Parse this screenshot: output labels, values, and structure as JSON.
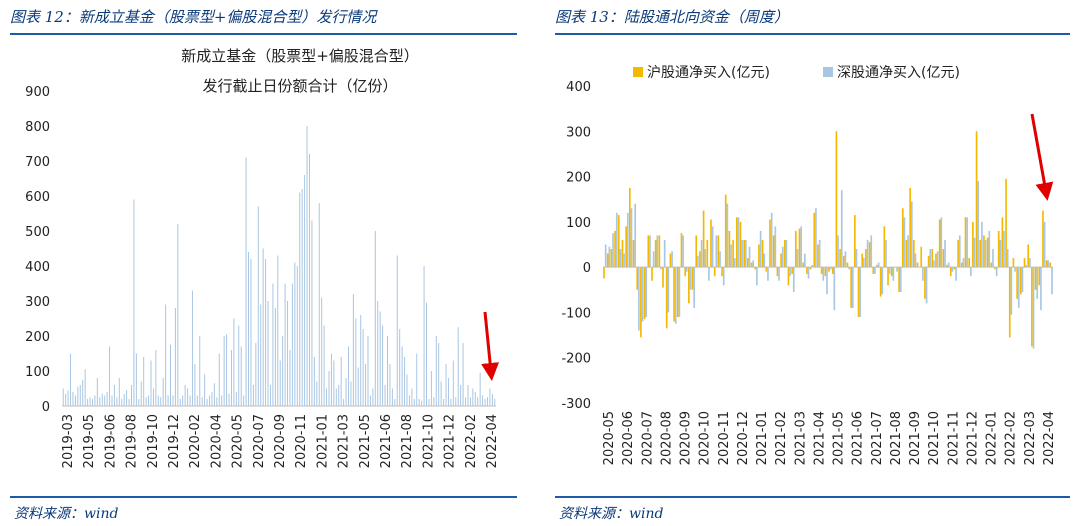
{
  "panels": [
    {
      "fig_title": "图表 12：新成立基金（股票型+偏股混合型）发行情况",
      "source": "资料来源：wind",
      "chart_data": {
        "type": "bar",
        "title_line1": "新成立基金（股票型+偏股混合型）",
        "title_line2": "发行截止日份额合计（亿份）",
        "ylim": [
          0,
          900
        ],
        "yticks": [
          0,
          100,
          200,
          300,
          400,
          500,
          600,
          700,
          800,
          900
        ],
        "xtick_labels": [
          "2019-03",
          "2019-05",
          "2019-06",
          "2019-08",
          "2019-10",
          "2019-12",
          "2020-02",
          "2020-04",
          "2020-05",
          "2020-07",
          "2020-09",
          "2020-11",
          "2021-01",
          "2021-03",
          "2021-05",
          "2021-06",
          "2021-08",
          "2021-10",
          "2021-12",
          "2022-02",
          "2022-04"
        ],
        "bar_color": "#a9c6e3",
        "values": [
          50,
          35,
          45,
          150,
          40,
          30,
          55,
          60,
          75,
          105,
          20,
          25,
          20,
          30,
          80,
          25,
          35,
          30,
          40,
          170,
          30,
          60,
          25,
          80,
          20,
          35,
          45,
          20,
          60,
          590,
          150,
          20,
          70,
          140,
          25,
          30,
          130,
          50,
          160,
          30,
          25,
          80,
          290,
          30,
          175,
          30,
          280,
          520,
          20,
          30,
          60,
          50,
          30,
          330,
          120,
          30,
          200,
          25,
          90,
          20,
          30,
          40,
          65,
          25,
          150,
          30,
          200,
          205,
          35,
          160,
          250,
          40,
          230,
          170,
          30,
          710,
          440,
          420,
          60,
          180,
          570,
          290,
          450,
          420,
          300,
          60,
          350,
          280,
          430,
          130,
          200,
          350,
          300,
          160,
          350,
          410,
          400,
          610,
          620,
          660,
          800,
          720,
          530,
          140,
          70,
          580,
          310,
          230,
          50,
          100,
          150,
          130,
          50,
          60,
          140,
          20,
          80,
          170,
          70,
          320,
          250,
          110,
          260,
          220,
          120,
          200,
          30,
          50,
          500,
          300,
          270,
          230,
          60,
          200,
          120,
          50,
          20,
          430,
          220,
          170,
          140,
          90,
          30,
          50,
          20,
          150,
          20,
          15,
          400,
          295,
          20,
          100,
          25,
          200,
          180,
          70,
          20,
          120,
          80,
          20,
          130,
          25,
          225,
          60,
          180,
          25,
          60,
          25,
          50,
          40,
          25,
          95,
          30,
          20,
          25,
          50,
          35,
          20
        ]
      }
    },
    {
      "fig_title": "图表 13：陆股通北向资金（周度）",
      "source": "资料来源：wind",
      "chart_data": {
        "type": "bar",
        "ylim": [
          -300,
          400
        ],
        "yticks": [
          -300,
          -200,
          -100,
          0,
          100,
          200,
          300,
          400
        ],
        "xtick_labels": [
          "2020-05",
          "2020-06",
          "2020-07",
          "2020-08",
          "2020-09",
          "2020-10",
          "2020-11",
          "2020-12",
          "2021-01",
          "2021-02",
          "2021-03",
          "2021-04",
          "2021-05",
          "2021-06",
          "2021-07",
          "2021-08",
          "2021-09",
          "2021-10",
          "2021-11",
          "2021-12",
          "2022-01",
          "2022-02",
          "2022-03",
          "2022-04"
        ],
        "legend_position": "top",
        "series": [
          {
            "name": "沪股通净买入(亿元)",
            "color": "#f5b800",
            "values": [
              -25,
              30,
              40,
              80,
              115,
              60,
              90,
              175,
              60,
              -50,
              -155,
              -115,
              70,
              -30,
              60,
              70,
              -45,
              -135,
              30,
              -120,
              -110,
              75,
              -20,
              -80,
              -50,
              70,
              35,
              125,
              60,
              105,
              -20,
              70,
              -20,
              160,
              80,
              60,
              110,
              100,
              60,
              20,
              10,
              -5,
              50,
              60,
              -10,
              105,
              70,
              -20,
              30,
              60,
              -40,
              -15,
              80,
              85,
              10,
              -15,
              -5,
              120,
              50,
              -15,
              -20,
              -10,
              -15,
              300,
              40,
              25,
              10,
              -90,
              115,
              -110,
              30,
              40,
              55,
              -15,
              5,
              -65,
              90,
              -40,
              -20,
              0,
              -55,
              130,
              60,
              175,
              60,
              10,
              45,
              -70,
              25,
              40,
              30,
              105,
              40,
              5,
              -20,
              -5,
              60,
              10,
              110,
              20,
              100,
              300,
              60,
              70,
              65,
              10,
              -5,
              80,
              110,
              195,
              -155,
              20,
              -70,
              -60,
              20,
              50,
              -175,
              -50,
              -40,
              125,
              15,
              10
            ]
          },
          {
            "name": "深股通净买入(亿元)",
            "color": "#a9c6e3",
            "values": [
              50,
              45,
              75,
              120,
              40,
              30,
              120,
              130,
              140,
              -140,
              -120,
              -110,
              70,
              35,
              70,
              -5,
              60,
              -100,
              35,
              -125,
              -110,
              70,
              -10,
              -50,
              -90,
              25,
              60,
              40,
              -30,
              90,
              70,
              35,
              -40,
              140,
              50,
              20,
              110,
              60,
              60,
              45,
              15,
              -40,
              80,
              30,
              -30,
              120,
              90,
              -30,
              45,
              60,
              -20,
              -55,
              40,
              90,
              30,
              -25,
              5,
              130,
              60,
              -30,
              -60,
              -5,
              -95,
              70,
              170,
              35,
              -5,
              -90,
              40,
              -110,
              20,
              60,
              70,
              -15,
              10,
              -60,
              60,
              -15,
              -30,
              -10,
              -55,
              110,
              70,
              145,
              30,
              0,
              -30,
              -80,
              40,
              15,
              35,
              110,
              60,
              10,
              -10,
              -30,
              70,
              20,
              110,
              -20,
              65,
              190,
              100,
              60,
              80,
              40,
              -20,
              60,
              80,
              40,
              -105,
              -10,
              -90,
              -55,
              5,
              20,
              -180,
              -70,
              -95,
              100,
              15,
              -60
            ]
          }
        ]
      }
    }
  ]
}
